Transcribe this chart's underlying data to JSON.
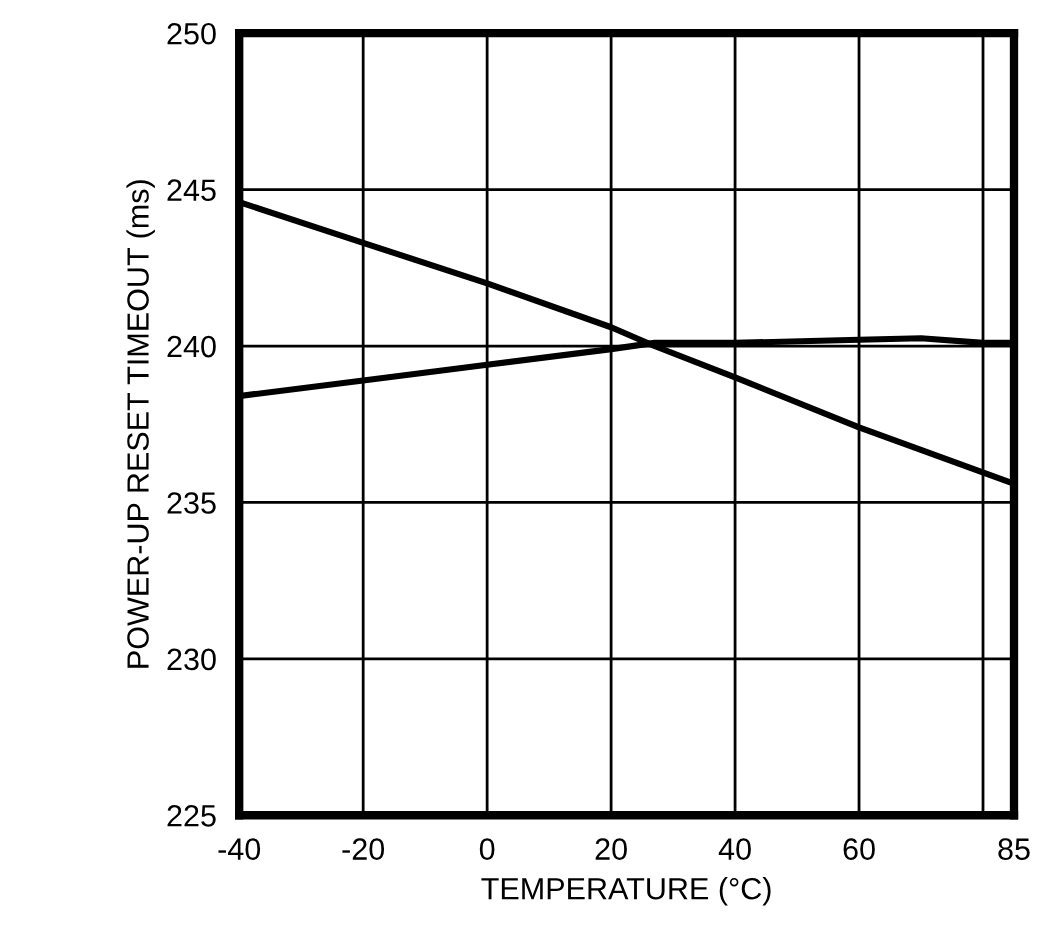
{
  "chart_data": {
    "type": "line",
    "xlabel": "TEMPERATURE (°C)",
    "ylabel": "POWER-UP RESET TIMEOUT (ms)",
    "xlim": [
      -40,
      85
    ],
    "xticks": [
      -40,
      -20,
      0,
      20,
      40,
      60,
      {
        "value": 80,
        "label": null
      },
      85
    ],
    "ylim": [
      225,
      250
    ],
    "yticks": [
      225,
      230,
      235,
      240,
      245,
      250
    ],
    "grid": true,
    "legend": false,
    "marker": "none",
    "line_style": "solid",
    "series": [
      {
        "color": "#000000",
        "x": [
          -40,
          -20,
          0,
          20,
          27,
          40,
          60,
          85
        ],
        "values": [
          244.6,
          243.3,
          242.0,
          240.6,
          240.0,
          239.0,
          237.4,
          235.6
        ]
      },
      {
        "color": "#000000",
        "x": [
          -40,
          -20,
          0,
          20,
          27,
          40,
          60,
          70,
          80,
          85
        ],
        "values": [
          238.4,
          238.9,
          239.4,
          239.9,
          240.1,
          240.1,
          240.2,
          240.25,
          240.1,
          240.1
        ]
      }
    ]
  }
}
